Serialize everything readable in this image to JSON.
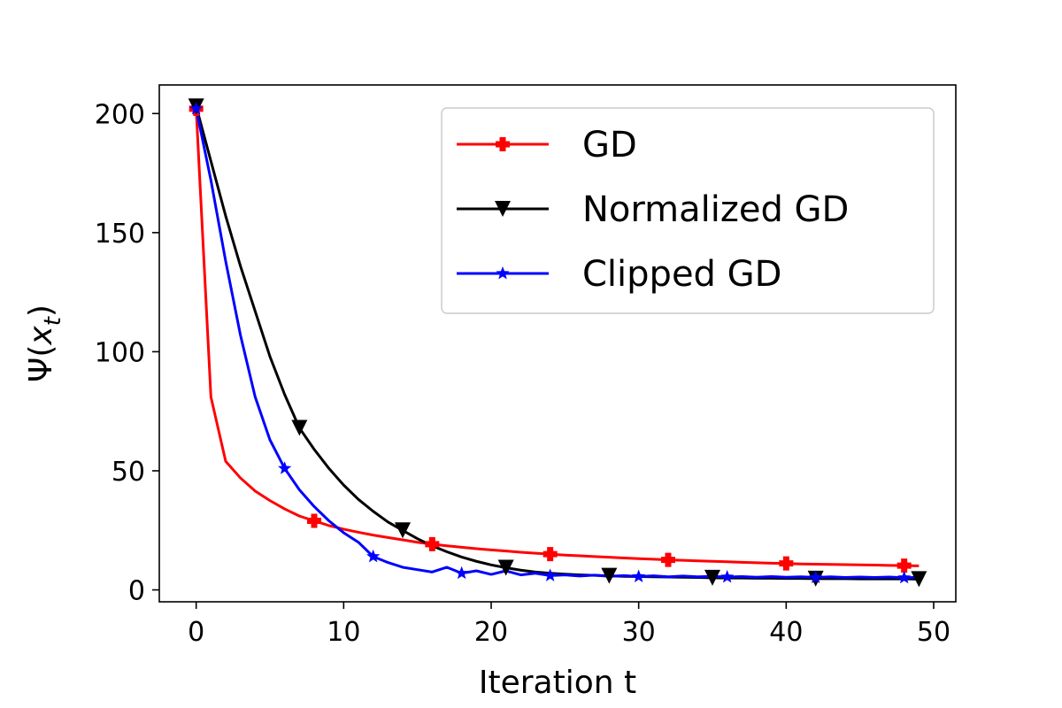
{
  "chart_data": {
    "type": "line",
    "title": "",
    "xlabel": "Iteration t",
    "ylabel_parts": {
      "prefix": "Ψ(",
      "var": "x",
      "sub": "t",
      "suffix": ")"
    },
    "xlim": [
      -2.5,
      51.5
    ],
    "ylim": [
      -5,
      212
    ],
    "xticks": [
      0,
      10,
      20,
      30,
      40,
      50
    ],
    "yticks": [
      0,
      50,
      100,
      150,
      200
    ],
    "grid": false,
    "legend_position": "top-right",
    "x": [
      0,
      1,
      2,
      3,
      4,
      5,
      6,
      7,
      8,
      9,
      10,
      11,
      12,
      13,
      14,
      15,
      16,
      17,
      18,
      19,
      20,
      21,
      22,
      23,
      24,
      25,
      26,
      27,
      28,
      29,
      30,
      31,
      32,
      33,
      34,
      35,
      36,
      37,
      38,
      39,
      40,
      41,
      42,
      43,
      44,
      45,
      46,
      47,
      48,
      49
    ],
    "series": [
      {
        "name": "GD",
        "color": "#ff0000",
        "marker": "plus",
        "marker_every": 8,
        "values": [
          202,
          81,
          54,
          47,
          41.5,
          37.5,
          34,
          31,
          29,
          27,
          25.5,
          24.2,
          23,
          22,
          21,
          20,
          19.2,
          18.5,
          17.9,
          17.3,
          16.8,
          16.3,
          15.8,
          15.4,
          15,
          14.6,
          14.3,
          14,
          13.7,
          13.4,
          13.1,
          12.9,
          12.6,
          12.4,
          12.2,
          12,
          11.8,
          11.6,
          11.4,
          11.2,
          11.1,
          10.9,
          10.8,
          10.7,
          10.6,
          10.5,
          10.4,
          10.3,
          10.2,
          10.1
        ]
      },
      {
        "name": "Normalized GD",
        "color": "#000000",
        "marker": "triangle-down",
        "marker_every": 7,
        "values": [
          203,
          180,
          157,
          136,
          117,
          98,
          82,
          68,
          59,
          51,
          44,
          38,
          33,
          28.5,
          25,
          21.5,
          18.5,
          16,
          13.8,
          12,
          10.5,
          9.3,
          8.3,
          7.5,
          7,
          6.6,
          6.3,
          6.1,
          5.9,
          5.7,
          5.6,
          5.5,
          5.4,
          5.3,
          5.2,
          5.1,
          5,
          5,
          4.9,
          4.9,
          4.8,
          4.8,
          4.7,
          4.7,
          4.7,
          4.6,
          4.6,
          4.6,
          4.6,
          4.5
        ]
      },
      {
        "name": "Clipped GD",
        "color": "#0000ff",
        "marker": "star",
        "marker_every": 6,
        "values": [
          202,
          172,
          138,
          107,
          81,
          63,
          51,
          42,
          35,
          29,
          24,
          20,
          14,
          11.5,
          9.5,
          8.5,
          7.5,
          9.5,
          7,
          8,
          6.5,
          8,
          6.3,
          7,
          6,
          6.3,
          5.8,
          6.2,
          5.7,
          6,
          5.6,
          5.9,
          5.5,
          5.8,
          5.5,
          5.7,
          5.4,
          5.6,
          5.3,
          5.6,
          5.3,
          5.5,
          5.2,
          5.5,
          5.2,
          5.4,
          5.2,
          5.4,
          5.1,
          5.3
        ]
      }
    ]
  }
}
